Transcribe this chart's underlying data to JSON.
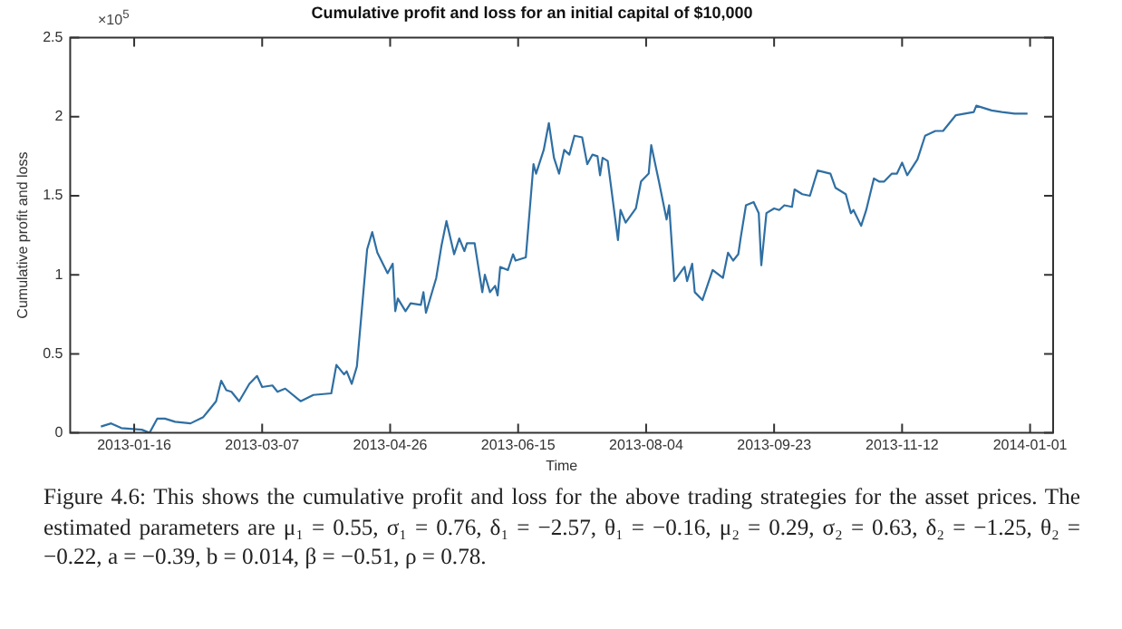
{
  "chart_data": {
    "type": "line",
    "title": "Cumulative profit and loss for an initial capital of $10,000",
    "xlabel": "Time",
    "ylabel": "Cumulative profit and loss",
    "annotations": [
      "×10$^{5}$",
      "Figure 4.6: This shows the cumulative profit and loss for the above trading strategies for the asset prices. The estimated parameters are μ₁ = 0.55, σ₁ = 0.76, δ₁ = −2.57, θ₁ = −0.16, μ₂ = 0.29, σ₂ = 0.63, δ₂ = −1.25, θ₂ = −0.22, a = −0.39, b = 0.014, β = −0.51, ρ = 0.78."
    ],
    "x": [
      "2013-01-03",
      "2013-01-07",
      "2013-01-11",
      "2013-01-19",
      "2013-01-22",
      "2013-01-25",
      "2013-01-28",
      "2013-02-01",
      "2013-02-07",
      "2013-02-12",
      "2013-02-14",
      "2013-02-17",
      "2013-02-19",
      "2013-02-21",
      "2013-02-23",
      "2013-02-26",
      "2013-03-02",
      "2013-03-05",
      "2013-03-07",
      "2013-03-11",
      "2013-03-13",
      "2013-03-16",
      "2013-03-22",
      "2013-03-27",
      "2013-04-03",
      "2013-04-05",
      "2013-04-08",
      "2013-04-09",
      "2013-04-11",
      "2013-04-13",
      "2013-04-17",
      "2013-04-19",
      "2013-04-21",
      "2013-04-25",
      "2013-04-27",
      "2013-04-28",
      "2013-04-29",
      "2013-05-02",
      "2013-05-04",
      "2013-05-08",
      "2013-05-09",
      "2013-05-10",
      "2013-05-14",
      "2013-05-16",
      "2013-05-18",
      "2013-05-21",
      "2013-05-23",
      "2013-05-25",
      "2013-05-26",
      "2013-05-29",
      "2013-06-01",
      "2013-06-02",
      "2013-06-04",
      "2013-06-06",
      "2013-06-07",
      "2013-06-08",
      "2013-06-11",
      "2013-06-13",
      "2013-06-14",
      "2013-06-18",
      "2013-06-21",
      "2013-06-22",
      "2013-06-25",
      "2013-06-27",
      "2013-06-29",
      "2013-07-01",
      "2013-07-03",
      "2013-07-05",
      "2013-07-07",
      "2013-07-10",
      "2013-07-12",
      "2013-07-14",
      "2013-07-16",
      "2013-07-17",
      "2013-07-18",
      "2013-07-20",
      "2013-07-24",
      "2013-07-25",
      "2013-07-27",
      "2013-07-31",
      "2013-08-02",
      "2013-08-05",
      "2013-08-06",
      "2013-08-09",
      "2013-08-12",
      "2013-08-13",
      "2013-08-15",
      "2013-08-19",
      "2013-08-20",
      "2013-08-22",
      "2013-08-23",
      "2013-08-26",
      "2013-08-30",
      "2013-09-03",
      "2013-09-05",
      "2013-09-07",
      "2013-09-09",
      "2013-09-10",
      "2013-09-12",
      "2013-09-15",
      "2013-09-17",
      "2013-09-18",
      "2013-09-20",
      "2013-09-23",
      "2013-09-25",
      "2013-09-27",
      "2013-09-30",
      "2013-10-01",
      "2013-10-04",
      "2013-10-07",
      "2013-10-10",
      "2013-10-15",
      "2013-10-17",
      "2013-10-21",
      "2013-10-23",
      "2013-10-24",
      "2013-10-27",
      "2013-10-29",
      "2013-11-01",
      "2013-11-03",
      "2013-11-05",
      "2013-11-08",
      "2013-11-10",
      "2013-11-12",
      "2013-11-14",
      "2013-11-18",
      "2013-11-21",
      "2013-11-25",
      "2013-11-28",
      "2013-12-03",
      "2013-12-10",
      "2013-12-11",
      "2013-12-17",
      "2013-12-21",
      "2013-12-26",
      "2013-12-31"
    ],
    "series": [
      {
        "color": "#2f6fa3",
        "values": [
          0.04,
          0.06,
          0.03,
          0.02,
          0.0,
          0.09,
          0.09,
          0.07,
          0.06,
          0.1,
          0.14,
          0.2,
          0.33,
          0.27,
          0.26,
          0.2,
          0.31,
          0.36,
          0.29,
          0.3,
          0.26,
          0.28,
          0.2,
          0.24,
          0.25,
          0.43,
          0.37,
          0.39,
          0.31,
          0.42,
          1.16,
          1.27,
          1.14,
          1.01,
          1.07,
          0.77,
          0.85,
          0.77,
          0.82,
          0.81,
          0.89,
          0.76,
          0.98,
          1.18,
          1.34,
          1.13,
          1.23,
          1.15,
          1.2,
          1.2,
          0.89,
          1.0,
          0.89,
          0.93,
          0.87,
          1.05,
          1.03,
          1.13,
          1.09,
          1.11,
          1.7,
          1.64,
          1.79,
          1.96,
          1.74,
          1.64,
          1.79,
          1.76,
          1.88,
          1.87,
          1.7,
          1.76,
          1.75,
          1.63,
          1.74,
          1.72,
          1.22,
          1.41,
          1.33,
          1.42,
          1.59,
          1.64,
          1.82,
          1.59,
          1.35,
          1.44,
          0.96,
          1.05,
          0.96,
          1.07,
          0.89,
          0.84,
          1.03,
          0.98,
          1.14,
          1.09,
          1.13,
          1.24,
          1.44,
          1.46,
          1.39,
          1.06,
          1.39,
          1.42,
          1.41,
          1.44,
          1.43,
          1.54,
          1.51,
          1.5,
          1.66,
          1.64,
          1.55,
          1.51,
          1.39,
          1.41,
          1.31,
          1.41,
          1.61,
          1.59,
          1.59,
          1.64,
          1.64,
          1.71,
          1.63,
          1.73,
          1.88,
          1.91,
          1.91,
          2.01,
          2.03,
          2.07,
          2.04,
          2.03,
          2.02,
          2.02
        ]
      }
    ],
    "xlim": [
      "2012-12-22",
      "2014-01-10"
    ],
    "xticks": [
      "2013-01-16",
      "2013-03-07",
      "2013-04-26",
      "2013-06-15",
      "2013-08-04",
      "2013-09-23",
      "2013-11-12",
      "2014-01-01"
    ],
    "ylim": [
      0,
      2.5
    ],
    "yticks": [
      0,
      0.5,
      1,
      1.5,
      2,
      2.5
    ],
    "grid": false,
    "legend": false,
    "marker": "none",
    "line_style": "solid"
  }
}
